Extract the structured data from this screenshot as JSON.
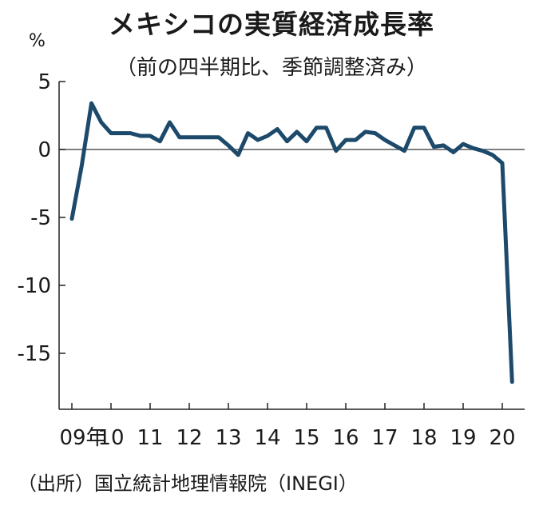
{
  "chart_data": {
    "type": "line",
    "title": "メキシコの実質経済成長率",
    "subtitle": "（前の四半期比、季節調整済み）",
    "ylabel": "%",
    "xlabel": "",
    "ylim": [
      -18.5,
      5
    ],
    "yticks": [
      5,
      0,
      -5,
      -10,
      -15
    ],
    "ytick_labels": [
      "5",
      "0",
      "-5",
      "-10",
      "-15"
    ],
    "xtick_labels": [
      "09年",
      "10",
      "11",
      "12",
      "13",
      "14",
      "15",
      "16",
      "17",
      "18",
      "19",
      "20"
    ],
    "xtick_years": [
      2009,
      2010,
      2011,
      2012,
      2013,
      2014,
      2015,
      2016,
      2017,
      2018,
      2019,
      2020
    ],
    "x": [
      "2009Q1",
      "2009Q2",
      "2009Q3",
      "2009Q4",
      "2010Q1",
      "2010Q2",
      "2010Q3",
      "2010Q4",
      "2011Q1",
      "2011Q2",
      "2011Q3",
      "2011Q4",
      "2012Q1",
      "2012Q2",
      "2012Q3",
      "2012Q4",
      "2013Q1",
      "2013Q2",
      "2013Q3",
      "2013Q4",
      "2014Q1",
      "2014Q2",
      "2014Q3",
      "2014Q4",
      "2015Q1",
      "2015Q2",
      "2015Q3",
      "2015Q4",
      "2016Q1",
      "2016Q2",
      "2016Q3",
      "2016Q4",
      "2017Q1",
      "2017Q2",
      "2017Q3",
      "2017Q4",
      "2018Q1",
      "2018Q2",
      "2018Q3",
      "2018Q4",
      "2019Q1",
      "2019Q2",
      "2019Q3",
      "2019Q4",
      "2020Q1",
      "2020Q2"
    ],
    "series": [
      {
        "values": [
          -5.1,
          -1.2,
          3.4,
          2.0,
          1.2,
          1.2,
          1.2,
          1.0,
          1.0,
          0.6,
          2.0,
          0.9,
          0.9,
          0.9,
          0.9,
          0.9,
          0.3,
          -0.4,
          1.2,
          0.7,
          1.0,
          1.5,
          0.6,
          1.3,
          0.6,
          1.6,
          1.6,
          -0.1,
          0.7,
          0.7,
          1.3,
          1.2,
          0.7,
          0.3,
          -0.1,
          1.6,
          1.6,
          0.2,
          0.3,
          -0.2,
          0.4,
          0.1,
          -0.1,
          -0.4,
          -1.0,
          -17.1
        ],
        "color": "#1d4a6b"
      }
    ],
    "grid": false,
    "zero_line": true
  },
  "source_note": "（出所）国立統計地理情報院（INEGI）"
}
